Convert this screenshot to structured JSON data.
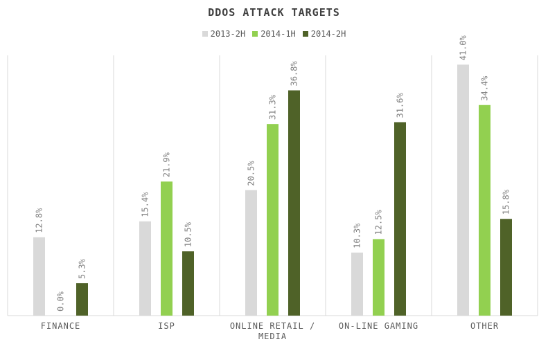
{
  "chart_data": {
    "type": "bar",
    "title": "DDOS ATTACK TARGETS",
    "xlabel": "",
    "ylabel": "",
    "categories": [
      "FINANCE",
      "ISP",
      "ONLINE RETAIL / MEDIA",
      "ON-LINE GAMING",
      "OTHER"
    ],
    "series": [
      {
        "name": "2013-2H",
        "color": "#d9d9d9",
        "values": [
          12.8,
          15.4,
          20.5,
          10.3,
          41.0
        ],
        "labels": [
          "12.8%",
          "15.4%",
          "20.5%",
          "10.3%",
          "41.0%"
        ]
      },
      {
        "name": "2014-1H",
        "color": "#92d050",
        "values": [
          0.0,
          21.9,
          31.3,
          12.5,
          34.4
        ],
        "labels": [
          "0.0%",
          "21.9%",
          "31.3%",
          "12.5%",
          "34.4%"
        ]
      },
      {
        "name": "2014-2H",
        "color": "#4f6228",
        "values": [
          5.3,
          10.5,
          36.8,
          31.6,
          15.8
        ],
        "labels": [
          "5.3%",
          "10.5%",
          "36.8%",
          "31.6%",
          "15.8%"
        ]
      }
    ],
    "ylim": [
      0,
      45
    ],
    "grid": "vertical category separators",
    "legend_position": "top-center"
  }
}
